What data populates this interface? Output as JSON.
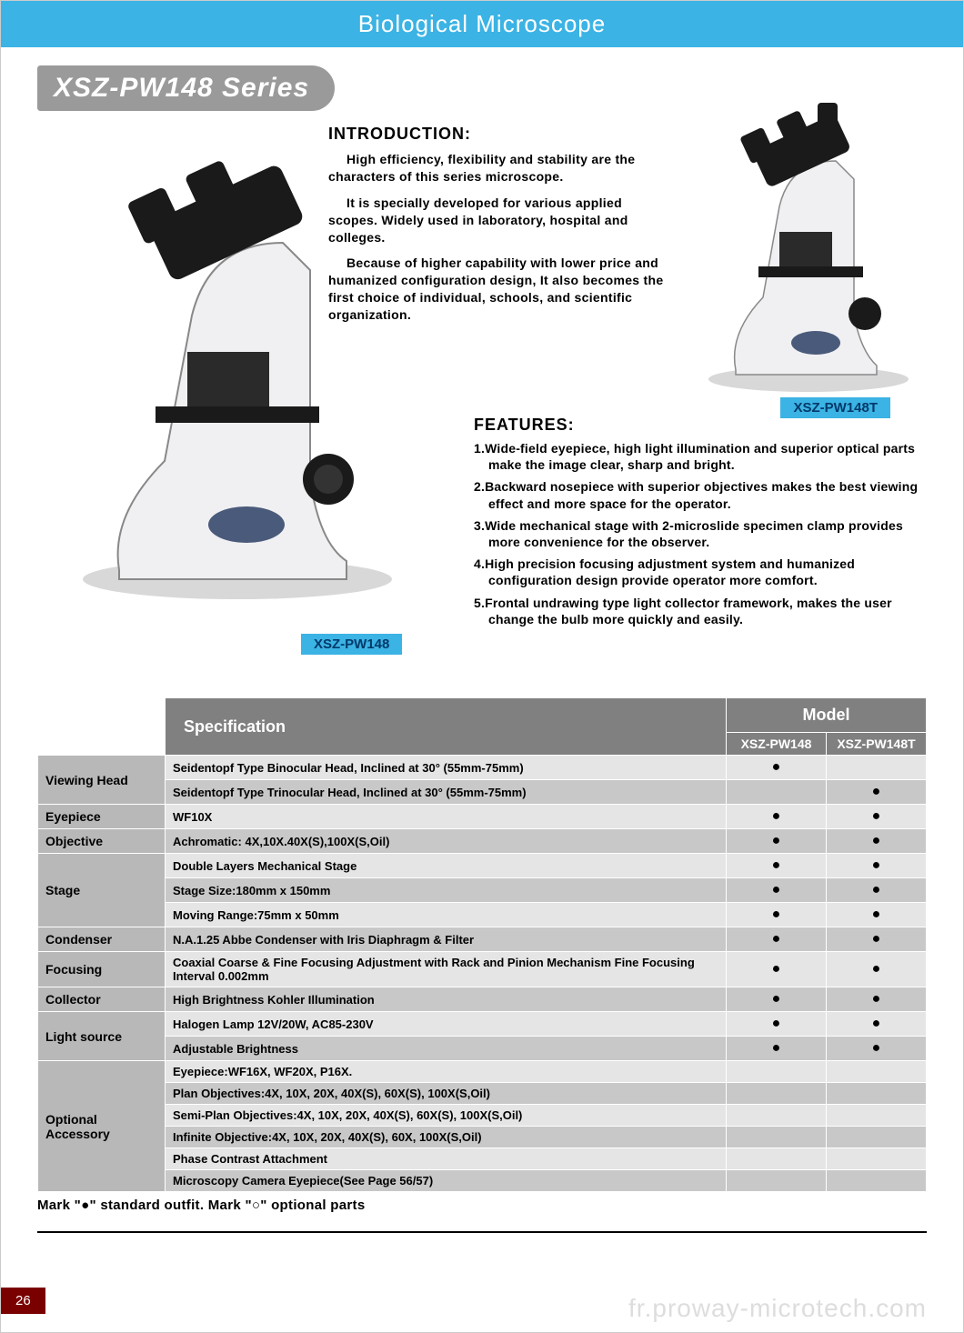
{
  "header": {
    "title": "Biological  Microscope"
  },
  "series_badge": "XSZ-PW148 Series",
  "intro": {
    "heading": "INTRODUCTION:",
    "p1": "High efficiency, flexibility and stability are the characters of this series microscope.",
    "p2": "It is specially developed for various applied scopes. Widely used in laboratory, hospital and colleges.",
    "p3": "Because of higher capability with lower price and humanized configuration design, It also becomes the first choice of individual, schools, and scientific organization."
  },
  "labels": {
    "main_model": "XSZ-PW148",
    "small_model": "XSZ-PW148T"
  },
  "features": {
    "heading": "FEATURES:",
    "items": [
      "1.Wide-field eyepiece, high light illumination and superior optical parts make the image clear, sharp  and bright.",
      "2.Backward nosepiece with superior objectives makes the best viewing effect and more space for the operator.",
      "3.Wide mechanical stage with 2-microslide specimen clamp provides more convenience for the observer.",
      "4.High precision focusing adjustment system and humanized configuration design provide operator more comfort.",
      "5.Frontal undrawing type light collector framework, makes the user change the bulb more quickly and easily."
    ]
  },
  "table": {
    "header_spec": "Specification",
    "header_model": "Model",
    "model_cols": [
      "XSZ-PW148",
      "XSZ-PW148T"
    ],
    "rows": [
      {
        "cat": "Viewing Head",
        "catspan": 2,
        "val": "Seidentopf Type  Binocular  Head,   Inclined  at 30°  (55mm-75mm)",
        "m": [
          "●",
          ""
        ],
        "stripe": "a"
      },
      {
        "val": "Seidentopf Type  Trinocular  Head,   Inclined  at 30°  (55mm-75mm)",
        "m": [
          "",
          "●"
        ],
        "stripe": "b"
      },
      {
        "cat": "Eyepiece",
        "catspan": 1,
        "val": "WF10X",
        "m": [
          "●",
          "●"
        ],
        "stripe": "a"
      },
      {
        "cat": "Objective",
        "catspan": 1,
        "val": "Achromatic: 4X,10X.40X(S),100X(S,Oil)",
        "m": [
          "●",
          "●"
        ],
        "stripe": "b"
      },
      {
        "cat": "Stage",
        "catspan": 3,
        "val": "Double Layers Mechanical Stage",
        "m": [
          "●",
          "●"
        ],
        "stripe": "a"
      },
      {
        "val": "Stage Size:180mm x 150mm",
        "m": [
          "●",
          "●"
        ],
        "stripe": "b"
      },
      {
        "val": "Moving Range:75mm x  50mm",
        "m": [
          "●",
          "●"
        ],
        "stripe": "a"
      },
      {
        "cat": "Condenser",
        "catspan": 1,
        "val": "N.A.1.25 Abbe Condenser with Iris Diaphragm  & Filter",
        "m": [
          "●",
          "●"
        ],
        "stripe": "b"
      },
      {
        "cat": "Focusing",
        "catspan": 1,
        "val": "Coaxial Coarse & Fine Focusing Adjustment with Rack and Pinion Mechanism Fine Focusing Interval 0.002mm",
        "m": [
          "●",
          "●"
        ],
        "stripe": "a"
      },
      {
        "cat": "Collector",
        "catspan": 1,
        "val": "High Brightness Kohler Illumination",
        "m": [
          "●",
          "●"
        ],
        "stripe": "b"
      },
      {
        "cat": "Light source",
        "catspan": 2,
        "val": "Halogen Lamp 12V/20W, AC85-230V",
        "m": [
          "●",
          "●"
        ],
        "stripe": "a"
      },
      {
        "val": "Adjustable  Brightness",
        "m": [
          "●",
          "●"
        ],
        "stripe": "b"
      },
      {
        "cat": "Optional Accessory",
        "catspan": 6,
        "val": "Eyepiece:WF16X, WF20X, P16X.",
        "m": [
          "",
          ""
        ],
        "stripe": "a"
      },
      {
        "val": "Plan Objectives:4X, 10X, 20X, 40X(S), 60X(S), 100X(S,Oil)",
        "m": [
          "",
          ""
        ],
        "stripe": "b"
      },
      {
        "val": "Semi-Plan Objectives:4X, 10X, 20X, 40X(S), 60X(S), 100X(S,Oil)",
        "m": [
          "",
          ""
        ],
        "stripe": "a"
      },
      {
        "val": "Infinite Objective:4X, 10X, 20X, 40X(S), 60X, 100X(S,Oil)",
        "m": [
          "",
          ""
        ],
        "stripe": "b"
      },
      {
        "val": "Phase Contrast Attachment",
        "m": [
          "",
          ""
        ],
        "stripe": "a"
      },
      {
        "val": "Microscopy Camera Eyepiece(See Page 56/57)",
        "m": [
          "",
          ""
        ],
        "stripe": "b"
      }
    ]
  },
  "legend": "Mark \"●\" standard outfit. Mark \"○\" optional parts",
  "page_number": "26",
  "watermark": "fr.proway-microtech.com",
  "colors": {
    "header_bg": "#3bb3e4",
    "badge_bg": "#9a9a9a",
    "table_header_bg": "#808080",
    "cat_bg": "#b8b8b8",
    "stripe_a": "#e5e5e5",
    "stripe_b": "#c8c8c8",
    "pagenum_bg": "#7a0000"
  }
}
